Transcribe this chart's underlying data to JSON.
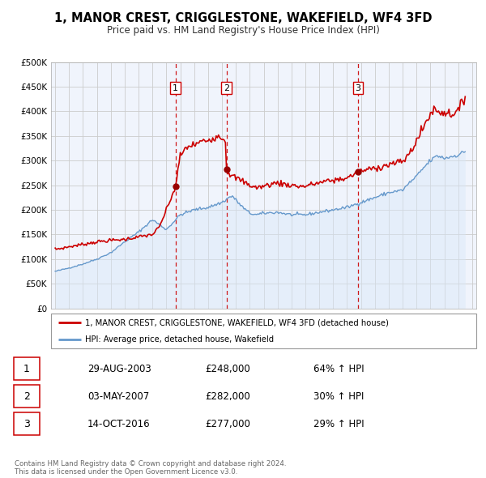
{
  "title": "1, MANOR CREST, CRIGGLESTONE, WAKEFIELD, WF4 3FD",
  "subtitle": "Price paid vs. HM Land Registry's House Price Index (HPI)",
  "xlim": [
    1994.7,
    2025.3
  ],
  "ylim": [
    0,
    500000
  ],
  "yticks": [
    0,
    50000,
    100000,
    150000,
    200000,
    250000,
    300000,
    350000,
    400000,
    450000,
    500000
  ],
  "ytick_labels": [
    "£0",
    "£50K",
    "£100K",
    "£150K",
    "£200K",
    "£250K",
    "£300K",
    "£350K",
    "£400K",
    "£450K",
    "£500K"
  ],
  "xticks": [
    1995,
    1996,
    1997,
    1998,
    1999,
    2000,
    2001,
    2002,
    2003,
    2004,
    2005,
    2006,
    2007,
    2008,
    2009,
    2010,
    2011,
    2012,
    2013,
    2014,
    2015,
    2016,
    2017,
    2018,
    2019,
    2020,
    2021,
    2022,
    2023,
    2024,
    2025
  ],
  "price_color": "#cc0000",
  "hpi_color": "#6699cc",
  "hpi_fill_color": "#d8e8f8",
  "sale_marker_color": "#990000",
  "vline_color": "#cc0000",
  "grid_color": "#cccccc",
  "bg_color": "#f0f4fc",
  "sales": [
    {
      "num": 1,
      "date": "29-AUG-2003",
      "year": 2003.66,
      "price": 248000,
      "pct": "64%",
      "dir": "↑"
    },
    {
      "num": 2,
      "date": "03-MAY-2007",
      "year": 2007.33,
      "price": 282000,
      "pct": "30%",
      "dir": "↑"
    },
    {
      "num": 3,
      "date": "14-OCT-2016",
      "year": 2016.78,
      "price": 277000,
      "pct": "29%",
      "dir": "↑"
    }
  ],
  "legend_property_label": "1, MANOR CREST, CRIGGLESTONE, WAKEFIELD, WF4 3FD (detached house)",
  "legend_hpi_label": "HPI: Average price, detached house, Wakefield",
  "footnote": "Contains HM Land Registry data © Crown copyright and database right 2024.\nThis data is licensed under the Open Government Licence v3.0."
}
